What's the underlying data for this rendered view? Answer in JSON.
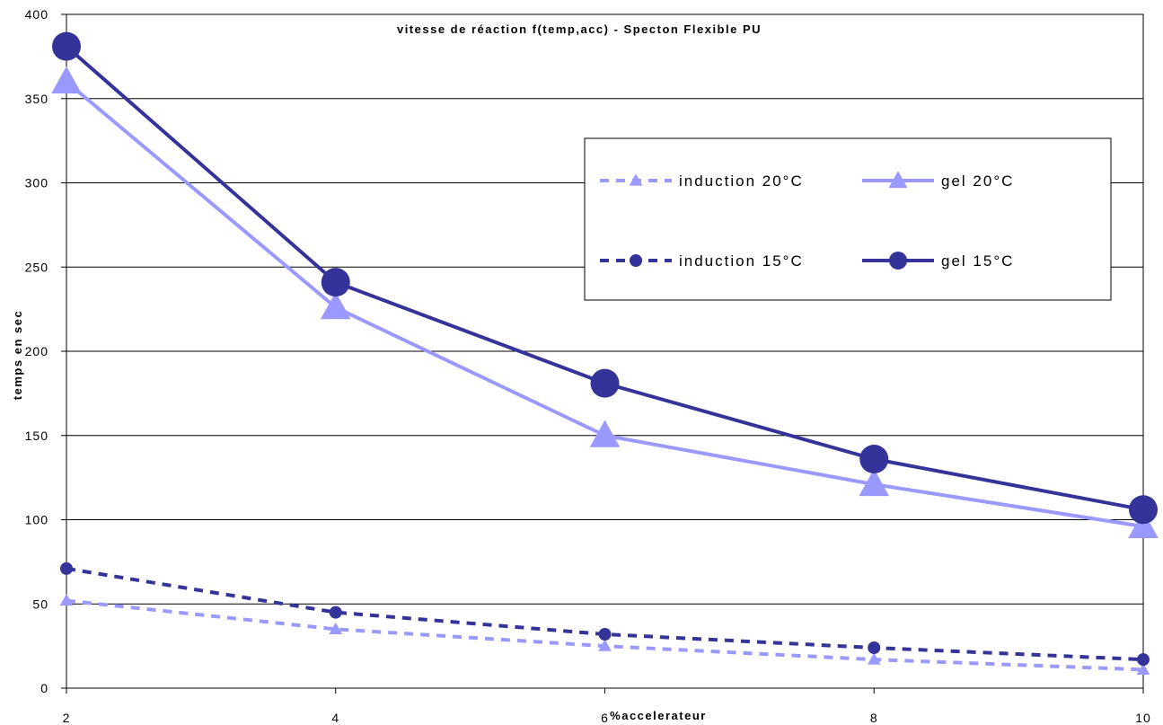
{
  "chart_data": {
    "type": "line",
    "title": "vitesse de réaction f(temp,acc)  - Specton Flexible PU",
    "xlabel": "%accelerateur",
    "ylabel": "temps en sec",
    "x": [
      2,
      4,
      6,
      8,
      10
    ],
    "xlim": [
      2,
      10
    ],
    "ylim": [
      0,
      400
    ],
    "x_ticks": [
      "2",
      "4",
      "6",
      "8",
      "10"
    ],
    "y_ticks": [
      "0",
      "50",
      "100",
      "150",
      "200",
      "250",
      "300",
      "350",
      "400"
    ],
    "grid": "horizontal",
    "legend_position": "upper-right",
    "series": [
      {
        "name": "induction 20°C",
        "values": [
          52,
          35,
          25,
          17,
          11
        ],
        "color": "#9999ff",
        "style": "dashed",
        "marker": "triangle"
      },
      {
        "name": "gel 20°C",
        "values": [
          360,
          226,
          150,
          121,
          96
        ],
        "color": "#9999ff",
        "style": "solid",
        "marker": "triangle"
      },
      {
        "name": "induction 15°C",
        "values": [
          71,
          45,
          32,
          24,
          17
        ],
        "color": "#333399",
        "style": "dashed",
        "marker": "circle"
      },
      {
        "name": "gel 15°C",
        "values": [
          381,
          241,
          181,
          136,
          106
        ],
        "color": "#333399",
        "style": "solid",
        "marker": "circle"
      }
    ]
  }
}
